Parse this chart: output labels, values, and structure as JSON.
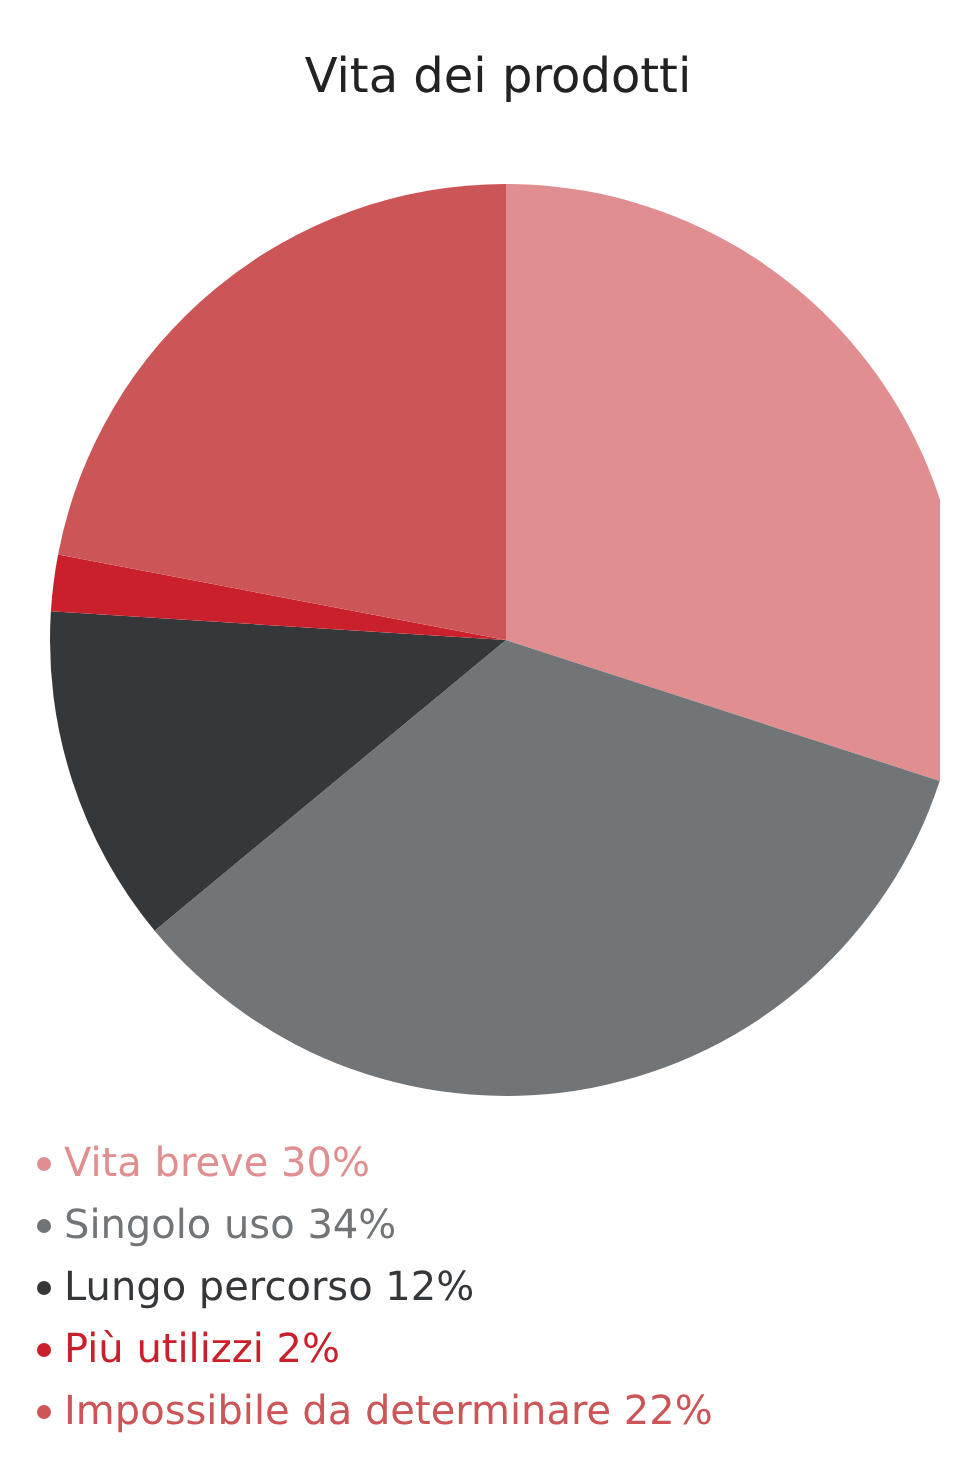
{
  "chart_data": {
    "type": "pie",
    "title": "Vita dei prodotti",
    "categories": [
      "Vita breve",
      "Singolo uso",
      "Lungo percorso",
      "Più utilizzi",
      "Impossibile da determinare"
    ],
    "values": [
      30,
      34,
      12,
      2,
      22
    ],
    "colors": [
      "#e08e8f",
      "#727578",
      "#35383b",
      "#c9202b",
      "#cc5558"
    ],
    "value_labels": [
      "30%",
      "34%",
      "12%",
      "2%",
      "22%"
    ],
    "legend": "bottom left"
  }
}
